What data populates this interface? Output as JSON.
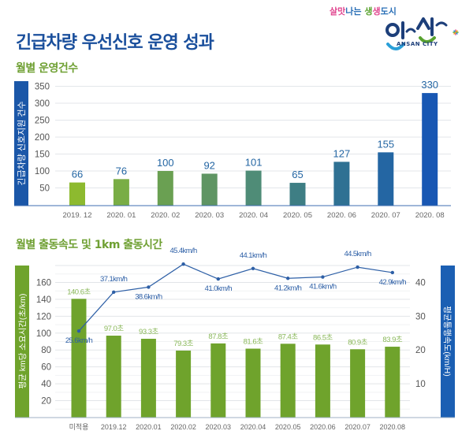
{
  "header": {
    "title": "긴급차량 우선신호 운영 성과",
    "logo": {
      "tagline_parts": [
        {
          "text": "살맛",
          "color": "#e0458f"
        },
        {
          "text": "나는 ",
          "color": "#2a6fb6"
        },
        {
          "text": "생",
          "color": "#58a22e"
        },
        {
          "text": "생",
          "color": "#e0458f"
        },
        {
          "text": "도시",
          "color": "#2a6fb6"
        }
      ],
      "wordmark": "안산",
      "english": "ANSAN CITY",
      "icon": "ansan-city-logo-icon"
    }
  },
  "chart_data": [
    {
      "type": "bar",
      "title": "월별 운영건수",
      "xlabel": "",
      "ylabel": "긴급차량 신호지원 건수",
      "categories": [
        "2019. 12",
        "2020. 01",
        "2020. 02",
        "2020. 03",
        "2020. 04",
        "2020. 05",
        "2020. 06",
        "2020. 07",
        "2020. 08"
      ],
      "values": [
        66,
        76,
        100,
        92,
        101,
        65,
        127,
        155,
        330
      ],
      "data_labels": [
        "66",
        "76",
        "100",
        "92",
        "101",
        "65",
        "127",
        "155",
        "330"
      ],
      "bar_colors": [
        "#8dba2f",
        "#79ad45",
        "#6aa052",
        "#5f9563",
        "#4f8c77",
        "#3e7e84",
        "#2f7193",
        "#2466a3",
        "#1857b3"
      ],
      "ylim": [
        0,
        350
      ],
      "yticks": [
        50,
        100,
        150,
        200,
        250,
        300,
        350
      ],
      "grid": true,
      "label_color": "#2466a3",
      "axis_label_bg": "#1b57a8"
    },
    {
      "type": "bar+line",
      "title": "월별 출동속도 및 1km 출동시간",
      "categories": [
        "미적용",
        "2019.12",
        "2020.01",
        "2020.02",
        "2020.03",
        "2020.04",
        "2020.05",
        "2020.06",
        "2020.07",
        "2020.08"
      ],
      "series": [
        {
          "name": "평균 km당 소요시간(초/km)",
          "type": "bar",
          "axis": "left",
          "values": [
            140.6,
            97.0,
            93.3,
            79.3,
            87.8,
            81.6,
            87.4,
            86.5,
            80.9,
            83.9
          ],
          "data_labels": [
            "140.6초",
            "97.0초",
            "93.3초",
            "79.3초",
            "87.8초",
            "81.6초",
            "87.4초",
            "86.5초",
            "80.9초",
            "83.9초"
          ],
          "color": "#6fa32c",
          "label_color": "#8ab85a"
        },
        {
          "name": "평균통행속도(km/H)",
          "type": "line",
          "axis": "right",
          "values": [
            25.6,
            37.1,
            38.6,
            45.4,
            41.0,
            44.1,
            41.2,
            41.6,
            44.5,
            42.9
          ],
          "data_labels": [
            "25.6km/h",
            "37.1km/h",
            "38.6km/h",
            "45.4km/h",
            "41.0km/h",
            "44.1km/h",
            "41.2km/h",
            "41.6km/h",
            "44.5km/h",
            "42.9km/h"
          ],
          "color": "#2d5fa6"
        }
      ],
      "ylabel_left": "평균 km당 소요시간(초/km)",
      "ylabel_right": "평균통행속도(km/H)",
      "ylim_left": [
        0,
        160
      ],
      "yticks_left": [
        20,
        40,
        60,
        80,
        100,
        120,
        140,
        160
      ],
      "ylim_right": [
        0,
        40
      ],
      "yticks_right": [
        10,
        20,
        30,
        40
      ],
      "grid": true,
      "left_axis_label_bg": "#6fa32c",
      "right_axis_label_bg": "#1b5fb3"
    }
  ]
}
